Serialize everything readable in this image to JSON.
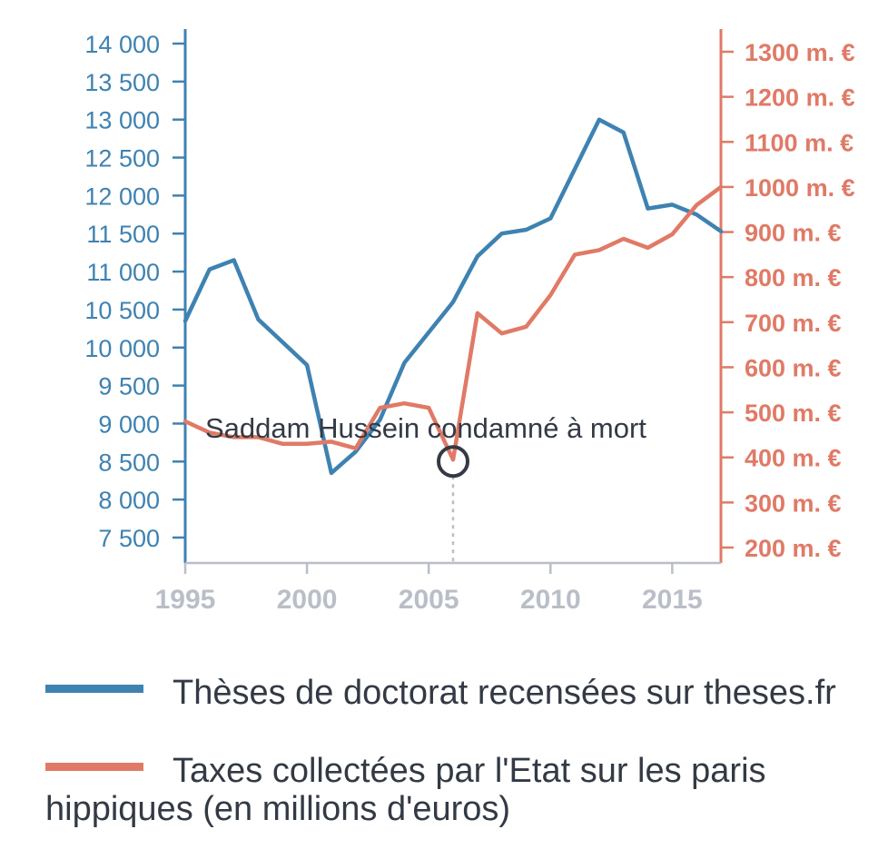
{
  "chart_data": {
    "type": "line",
    "x": [
      1995,
      1996,
      1997,
      1998,
      1999,
      2000,
      2001,
      2002,
      2003,
      2004,
      2005,
      2006,
      2007,
      2008,
      2009,
      2010,
      2011,
      2012,
      2013,
      2014,
      2015,
      2016,
      2017
    ],
    "xticks": [
      "1995",
      "2000",
      "2005",
      "2010",
      "2015"
    ],
    "xlim": [
      1995,
      2017
    ],
    "left_axis": {
      "ticks": [
        7500,
        8000,
        8500,
        9000,
        9500,
        10000,
        10500,
        11000,
        11500,
        12000,
        12500,
        13000,
        13500,
        14000
      ],
      "tick_labels": [
        "7 500",
        "8 000",
        "8 500",
        "9 000",
        "9 500",
        "10 000",
        "10 500",
        "11 000",
        "11 500",
        "12 000",
        "12 500",
        "13 000",
        "13 500",
        "14 000"
      ],
      "ylim": [
        7150,
        14200
      ]
    },
    "right_axis": {
      "ticks": [
        200,
        300,
        400,
        500,
        600,
        700,
        800,
        900,
        1000,
        1100,
        1200,
        1300
      ],
      "tick_labels": [
        "200 m. €",
        "300 m. €",
        "400 m. €",
        "500 m. €",
        "600 m. €",
        "700 m. €",
        "800 m. €",
        "900 m. €",
        "1000 m. €",
        "1100 m. €",
        "1200 m. €",
        "1300 m. €"
      ],
      "ylim": [
        170,
        1345
      ]
    },
    "series": [
      {
        "axis": "left",
        "color": "#3e82b1",
        "values": [
          10350,
          11030,
          11150,
          10370,
          10070,
          9770,
          8350,
          8630,
          9050,
          9800,
          10200,
          10600,
          11200,
          11500,
          11550,
          11700,
          12350,
          13000,
          12830,
          11830,
          11880,
          11750,
          11530
        ]
      },
      {
        "axis": "right",
        "color": "#e07a66",
        "values": [
          480,
          455,
          445,
          445,
          430,
          430,
          435,
          420,
          510,
          520,
          510,
          395,
          720,
          675,
          690,
          760,
          850,
          860,
          885,
          865,
          895,
          960,
          1000
        ]
      }
    ],
    "annotation": {
      "text": "Saddam Hussein condamné à mort",
      "x": 2006,
      "y_right": 395
    }
  },
  "legend": [
    {
      "label": "Thèses de doctorat recensées sur theses.fr",
      "color": "#3e82b1"
    },
    {
      "label": "Taxes collectées par l'Etat sur les paris hippiques (en millions d'euros)",
      "color": "#e07a66"
    }
  ]
}
